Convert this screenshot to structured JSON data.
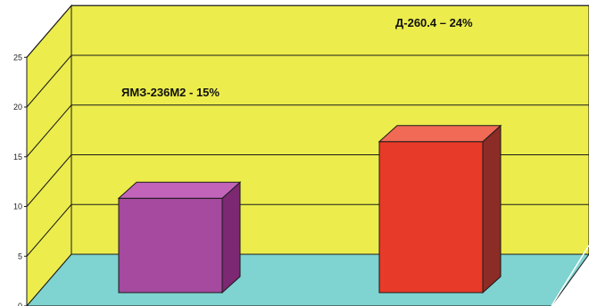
{
  "chart_data": {
    "type": "bar",
    "categories": [
      "ЯМЗ-236М2",
      "Д-260.4"
    ],
    "values": [
      15,
      24
    ],
    "data_labels": [
      "ЯМЗ-236М2 - 15%",
      "Д-260.4 – 24%"
    ],
    "ylim": [
      0,
      25
    ],
    "yticks": [
      "0",
      "5",
      "10",
      "15",
      "20",
      "25"
    ],
    "grid": true,
    "three_d": true,
    "colors": {
      "wall": "#ECEC4C",
      "floor": "#7FD3D0",
      "bars": [
        "#A54A9E",
        "#E83A28"
      ],
      "bar_tops": [
        "#C264BA",
        "#F06A55"
      ],
      "bar_sides": [
        "#7C2872",
        "#8C2C26"
      ],
      "grid": "#1a1a1a"
    }
  }
}
